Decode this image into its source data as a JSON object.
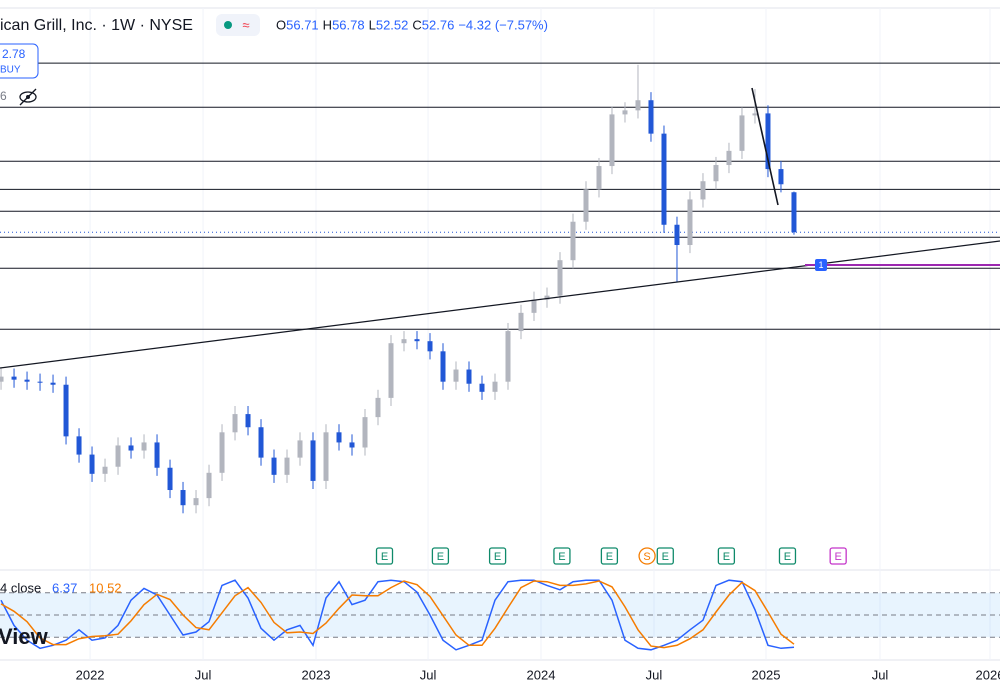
{
  "chart_data": {
    "type": "candlestick",
    "symbol": "ican Grill, Inc. · 1W · NYSE",
    "ohlc_labels": [
      "O",
      "H",
      "L",
      "C"
    ],
    "change": "−4.32 (−7.57%)",
    "price_box": {
      "price": "2.78",
      "side": "BUY"
    },
    "indicator_count": "6",
    "up_color": "#b2b5be",
    "down_color": "#2157d6",
    "categories": [
      null,
      null,
      null,
      null,
      null,
      null,
      null,
      null,
      null,
      null,
      null,
      null,
      null,
      null,
      null,
      null,
      null,
      null,
      null,
      null,
      null,
      null,
      null,
      null,
      null,
      null,
      null,
      null,
      null,
      null,
      null,
      null,
      null,
      null,
      null,
      null,
      null,
      null,
      null,
      null,
      null,
      null,
      null,
      null,
      null,
      null,
      null,
      null,
      null,
      null,
      null,
      null,
      null,
      null,
      null,
      null,
      null,
      null,
      null,
      null,
      null,
      null
    ],
    "ohlc": [
      [
        38.0,
        39.3,
        37.2,
        38.5
      ],
      [
        38.5,
        39.3,
        37.4,
        38.2
      ],
      [
        38.2,
        39.0,
        37.2,
        38.0
      ],
      [
        38.0,
        38.8,
        37.1,
        37.9
      ],
      [
        37.9,
        38.7,
        36.9,
        37.7
      ],
      [
        37.7,
        38.5,
        31.8,
        32.6
      ],
      [
        32.6,
        33.4,
        30.0,
        30.8
      ],
      [
        30.8,
        31.6,
        28.1,
        28.9
      ],
      [
        28.9,
        30.4,
        28.1,
        29.6
      ],
      [
        29.6,
        32.5,
        28.8,
        31.7
      ],
      [
        31.7,
        32.5,
        30.4,
        31.2
      ],
      [
        31.2,
        32.8,
        30.4,
        32.0
      ],
      [
        32.0,
        32.8,
        28.7,
        29.5
      ],
      [
        29.5,
        30.3,
        26.5,
        27.3
      ],
      [
        27.3,
        28.1,
        25.0,
        25.8
      ],
      [
        25.8,
        27.3,
        25.0,
        26.5
      ],
      [
        26.5,
        29.8,
        25.7,
        29.0
      ],
      [
        29.0,
        33.8,
        28.2,
        33.0
      ],
      [
        33.0,
        35.6,
        32.2,
        34.8
      ],
      [
        34.8,
        35.6,
        32.7,
        33.5
      ],
      [
        33.5,
        34.3,
        29.7,
        30.5
      ],
      [
        30.5,
        31.3,
        28.0,
        28.8
      ],
      [
        28.8,
        31.3,
        28.0,
        30.5
      ],
      [
        30.5,
        33.0,
        29.7,
        32.2
      ],
      [
        32.2,
        33.0,
        27.4,
        28.2
      ],
      [
        28.2,
        33.8,
        27.4,
        33.0
      ],
      [
        33.0,
        33.8,
        31.2,
        32.0
      ],
      [
        32.0,
        32.8,
        30.7,
        31.5
      ],
      [
        31.5,
        35.3,
        30.7,
        34.5
      ],
      [
        34.5,
        37.2,
        33.7,
        36.4
      ],
      [
        36.4,
        42.6,
        35.6,
        41.8
      ],
      [
        41.8,
        43.0,
        41.0,
        42.2
      ],
      [
        42.2,
        43.0,
        41.2,
        42.0
      ],
      [
        42.0,
        42.8,
        40.2,
        41.0
      ],
      [
        41.0,
        41.8,
        37.2,
        38.0
      ],
      [
        38.0,
        40.0,
        37.2,
        39.2
      ],
      [
        39.2,
        40.0,
        37.0,
        37.8
      ],
      [
        37.8,
        38.6,
        36.2,
        37.0
      ],
      [
        37.0,
        38.8,
        36.2,
        38.0
      ],
      [
        38.0,
        43.8,
        37.2,
        43.0
      ],
      [
        43.0,
        45.6,
        42.2,
        44.8
      ],
      [
        44.8,
        46.9,
        44.0,
        46.1
      ],
      [
        46.1,
        47.3,
        45.3,
        46.5
      ],
      [
        46.5,
        50.8,
        45.7,
        50.0
      ],
      [
        50.0,
        54.6,
        49.2,
        53.8
      ],
      [
        53.8,
        57.8,
        53.0,
        57.0
      ],
      [
        57.0,
        60.1,
        56.2,
        59.3
      ],
      [
        59.3,
        65.2,
        58.5,
        64.4
      ],
      [
        64.4,
        65.6,
        63.6,
        64.8
      ],
      [
        64.8,
        69.3,
        64.0,
        65.8
      ],
      [
        65.8,
        66.6,
        61.7,
        62.5
      ],
      [
        62.5,
        63.3,
        52.7,
        53.5
      ],
      [
        53.5,
        54.3,
        47.8,
        51.5
      ],
      [
        51.5,
        56.8,
        50.7,
        56.0
      ],
      [
        56.0,
        58.6,
        55.2,
        57.8
      ],
      [
        57.8,
        60.2,
        57.0,
        59.4
      ],
      [
        59.4,
        61.6,
        58.6,
        60.8
      ],
      [
        60.8,
        65.1,
        60.0,
        64.3
      ],
      [
        64.3,
        66.9,
        63.5,
        64.5
      ],
      [
        64.5,
        65.3,
        58.2,
        59.0
      ],
      [
        59.0,
        59.8,
        56.7,
        57.5
      ],
      [
        56.71,
        56.78,
        52.52,
        52.76
      ]
    ],
    "ylim": [
      19.4,
      75.7
    ],
    "xlim": [
      -0.08,
      76.85
    ],
    "xticks": [
      {
        "value": 6.85,
        "label": "2022"
      },
      {
        "value": 15.54,
        "label": "Jul"
      },
      {
        "value": 24.23,
        "label": "2023"
      },
      {
        "value": 32.85,
        "label": "Jul"
      },
      {
        "value": 41.54,
        "label": "2024"
      },
      {
        "value": 50.23,
        "label": "Jul"
      },
      {
        "value": 58.85,
        "label": "2025"
      },
      {
        "value": 67.62,
        "label": "Jul"
      },
      {
        "value": 76.08,
        "label": "2026"
      }
    ],
    "hlines": [
      69.46,
      65.11,
      59.77,
      57.0,
      54.83,
      52.27,
      49.2,
      43.18
    ],
    "events": [
      {
        "x": 29.5,
        "label": "E",
        "color": "#0f8a6a"
      },
      {
        "x": 33.8,
        "label": "E",
        "color": "#0f8a6a"
      },
      {
        "x": 38.2,
        "label": "E",
        "color": "#0f8a6a"
      },
      {
        "x": 43.15,
        "label": "E",
        "color": "#0f8a6a"
      },
      {
        "x": 46.8,
        "label": "E",
        "color": "#0f8a6a"
      },
      {
        "x": 49.7,
        "label": "S",
        "color": "#f57c00"
      },
      {
        "x": 51.1,
        "label": "E",
        "color": "#0f8a6a"
      },
      {
        "x": 55.8,
        "label": "E",
        "color": "#0f8a6a"
      },
      {
        "x": 60.5,
        "label": "E",
        "color": "#0f8a6a"
      },
      {
        "x": 64.4,
        "label": "E",
        "color": "#c435c9"
      }
    ],
    "stochastic": {
      "title": "4 close",
      "watermark": "View",
      "ylim": [
        0,
        100
      ],
      "levels": [
        20,
        50,
        80
      ],
      "series": [
        {
          "color": "#2962ff",
          "values": [
            70,
            36,
            16,
            5,
            9,
            16,
            30,
            16,
            19,
            36,
            70,
            86,
            77,
            50,
            23,
            27,
            41,
            90,
            97,
            73,
            32,
            16,
            30,
            36,
            9,
            73,
            95,
            64,
            70,
            95,
            97,
            95,
            81,
            50,
            16,
            3,
            9,
            16,
            70,
            95,
            97,
            97,
            90,
            84,
            95,
            97,
            97,
            70,
            16,
            5,
            3,
            9,
            16,
            30,
            43,
            90,
            97,
            95,
            57,
            9,
            5,
            6.37
          ]
        },
        {
          "color": "#f57c00",
          "values": [
            65,
            55,
            41,
            19,
            10,
            10,
            18,
            21,
            22,
            24,
            42,
            64,
            78,
            71,
            50,
            33,
            30,
            53,
            76,
            87,
            67,
            40,
            26,
            27,
            25,
            39,
            59,
            77,
            76,
            76,
            87,
            96,
            91,
            75,
            49,
            23,
            9,
            9,
            32,
            60,
            87,
            96,
            95,
            90,
            90,
            92,
            96,
            88,
            61,
            30,
            8,
            6,
            9,
            18,
            30,
            54,
            77,
            94,
            83,
            54,
            24,
            10.52
          ]
        }
      ]
    }
  }
}
